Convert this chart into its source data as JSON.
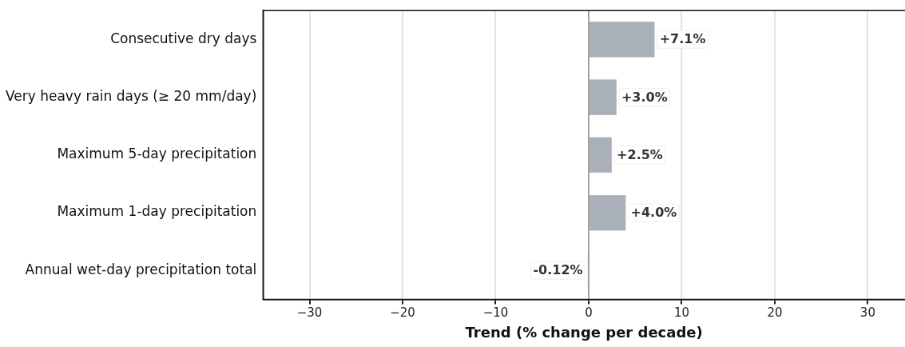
{
  "chart_data": {
    "type": "bar",
    "orientation": "horizontal",
    "xlabel": "Trend (% change per decade)",
    "categories": [
      "Consecutive dry days",
      "Very heavy rain days (≥ 20 mm/day)",
      "Maximum 5-day precipitation",
      "Maximum 1-day precipitation",
      "Annual wet-day precipitation total"
    ],
    "values": [
      7.1,
      3.0,
      2.5,
      4.0,
      -0.12
    ],
    "value_labels": [
      "+7.1%",
      "+3.0%",
      "+2.5%",
      "+4.0%",
      "-0.12%"
    ],
    "color": "#aab0b8",
    "xlim": [
      -35,
      34
    ],
    "xticks": [
      {
        "value": -30,
        "label": "−30"
      },
      {
        "value": -20,
        "label": "−20"
      },
      {
        "value": -10,
        "label": "−10"
      },
      0,
      10,
      20,
      30
    ],
    "grid": "x",
    "ref_lines": [
      {
        "axis": "x",
        "value": 0,
        "color": "#8c8c8c"
      }
    ]
  }
}
